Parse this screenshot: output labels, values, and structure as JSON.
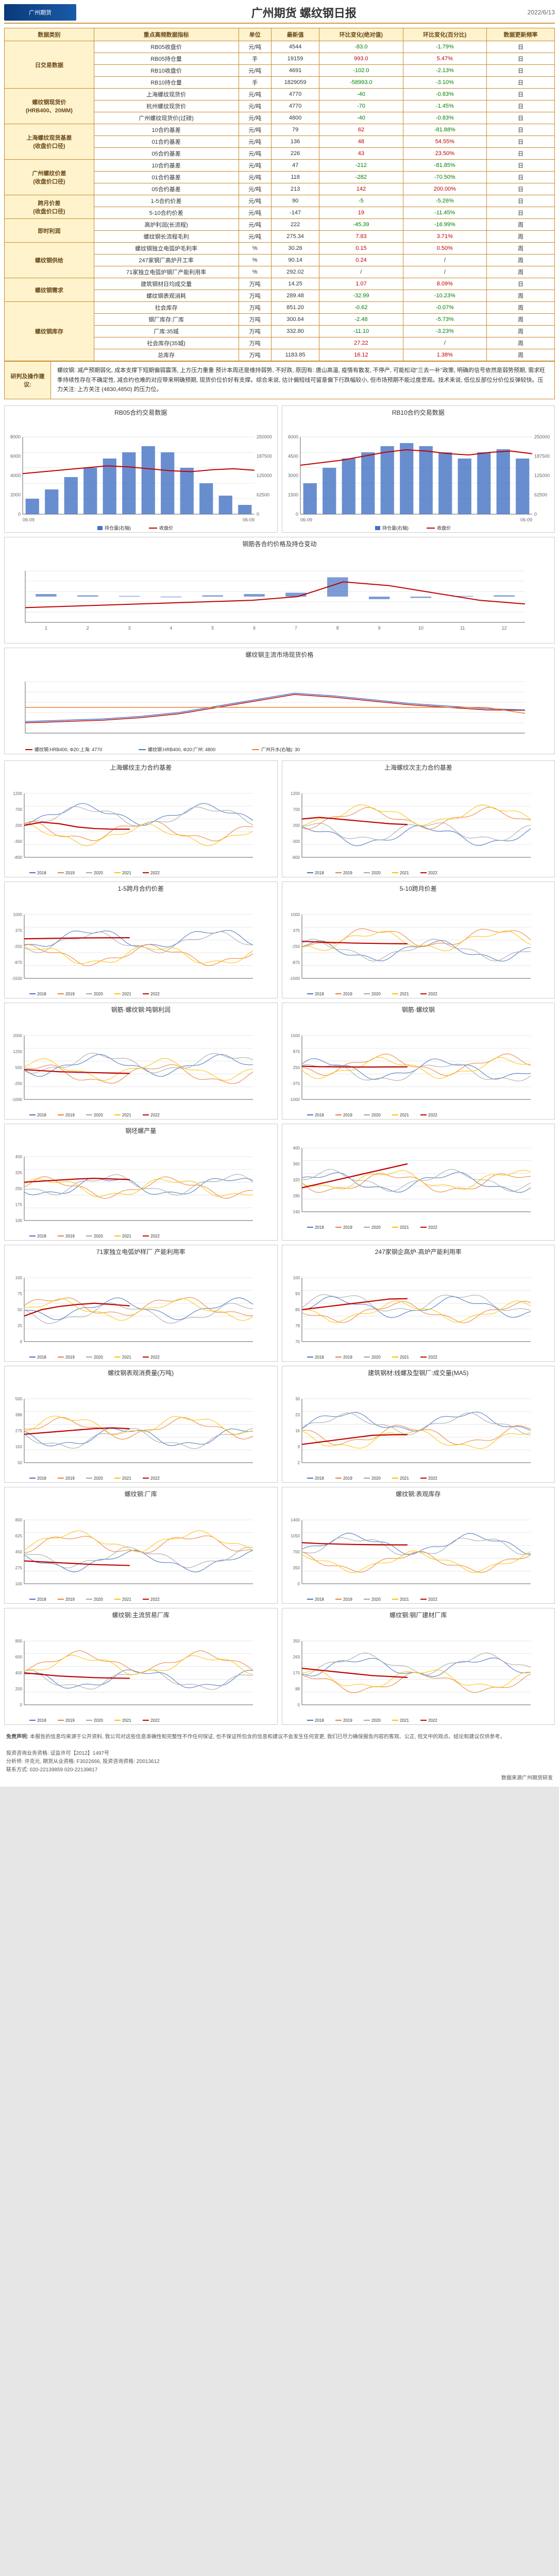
{
  "header": {
    "logo_text": "广州期货",
    "title": "广州期货 螺纹钢日报",
    "date": "2022/6/13"
  },
  "table": {
    "headers": [
      "数据类别",
      "重点高频数据指标",
      "单位",
      "最新值",
      "环比变化(绝对值)",
      "环比变化(百分比)",
      "数据更新频率"
    ],
    "sections": [
      {
        "cat": "日交易数据",
        "rows": [
          [
            "RB05收盘价",
            "元/吨",
            "4544",
            "-83.0",
            "-1.79%",
            "日"
          ],
          [
            "RB05持仓量",
            "手",
            "19159",
            "993.0",
            "5.47%",
            "日"
          ],
          [
            "RB10收盘价",
            "元/吨",
            "4691",
            "-102.0",
            "-2.13%",
            "日"
          ],
          [
            "RB10持仓量",
            "手",
            "1829059",
            "-58993.0",
            "-3.10%",
            "日"
          ]
        ]
      },
      {
        "cat": "螺纹钢现货价\n(HRB400、20MM)",
        "rows": [
          [
            "上海螺纹现货价",
            "元/吨",
            "4770",
            "-40",
            "-0.83%",
            "日"
          ],
          [
            "杭州螺纹现货价",
            "元/吨",
            "4770",
            "-70",
            "-1.45%",
            "日"
          ],
          [
            "广州螺纹现货价(过磅)",
            "元/吨",
            "4800",
            "-40",
            "-0.83%",
            "日"
          ]
        ]
      },
      {
        "cat": "上海螺纹现货基差\n(收盘价口径)",
        "rows": [
          [
            "10合约基差",
            "元/吨",
            "79",
            "62",
            "-81.88%",
            "日"
          ],
          [
            "01合约基差",
            "元/吨",
            "136",
            "48",
            "54.55%",
            "日"
          ],
          [
            "05合约基差",
            "元/吨",
            "226",
            "43",
            "23.50%",
            "日"
          ]
        ]
      },
      {
        "cat": "广州螺纹价差\n(收盘价口径)",
        "rows": [
          [
            "10合约基差",
            "元/吨",
            "47",
            "-212",
            "-81.85%",
            "日"
          ],
          [
            "01合约基差",
            "元/吨",
            "118",
            "-282",
            "-70.50%",
            "日"
          ],
          [
            "05合约基差",
            "元/吨",
            "213",
            "142",
            "200.00%",
            "日"
          ]
        ]
      },
      {
        "cat": "跨月价差\n(收盘价口径)",
        "rows": [
          [
            "1-5合约价差",
            "元/吨",
            "90",
            "-5",
            "-5.26%",
            "日"
          ],
          [
            "5-10合约价差",
            "元/吨",
            "-147",
            "19",
            "-11.45%",
            "日"
          ]
        ]
      },
      {
        "cat": "即时利润",
        "rows": [
          [
            "高炉利润(长流程)",
            "元/吨",
            "222",
            "-45.39",
            "-16.99%",
            "周"
          ],
          [
            "螺纹钢长流程毛利",
            "元/吨",
            "275.34",
            "7.83",
            "3.71%",
            "周"
          ]
        ]
      },
      {
        "cat": "螺纹钢供给",
        "rows": [
          [
            "螺纹钢独立电弧炉毛利率",
            "%",
            "30.26",
            "0.15",
            "0.50%",
            "周"
          ],
          [
            "247家钢厂高炉开工率",
            "%",
            "90.14",
            "0.24",
            "/",
            "周"
          ],
          [
            "71家独立电弧炉钢厂产能利用率",
            "%",
            "292.02",
            "/",
            "/",
            "周"
          ]
        ]
      },
      {
        "cat": "螺纹钢需求",
        "rows": [
          [
            "建筑钢材日均成交量",
            "万吨",
            "14.25",
            "1.07",
            "8.09%",
            "日"
          ],
          [
            "螺纹钢表观消耗",
            "万吨",
            "289.48",
            "-32.99",
            "-10.23%",
            "周"
          ]
        ]
      },
      {
        "cat": "螺纹钢库存",
        "rows": [
          [
            "社会库存",
            "万吨",
            "851.20",
            "-0.62",
            "-0.07%",
            "周"
          ],
          [
            "钢厂库存:厂库",
            "万吨",
            "300.64",
            "-2.48",
            "-5.73%",
            "周"
          ],
          [
            "厂库:35城",
            "万吨",
            "332.80",
            "-11.10",
            "-3.23%",
            "周"
          ],
          [
            "社会库存(35城)",
            "万吨",
            "",
            "27.22",
            "/",
            "周"
          ],
          [
            "总库存",
            "万吨",
            "1183.85",
            "16.12",
            "1.38%",
            "周"
          ]
        ]
      }
    ]
  },
  "analysis": {
    "label": "研判及操作建议:",
    "text": "螺纹钢: 减产预期弱化, 成本支撑下短期偏弱震荡, 上方压力重重 预计本周还是维持弱势, 不好跌, 原因有: 唐山高温, 疫情有散发, 不停产, 可能松动\"三去一补\"政策, 明确的信号依然是弱势预期, 需求旺季持续性存在不确定性, 减合约也难的对应带来明确预期, 现货价位价好有支撑。综合来说, 估计偏短线可留意偏下行跌幅较小, 但市场预期不能过度悲观。技术来说, 低位反部位分价位反弹较快。压力关注: 上方关注 (4830,4850) 的压力位。"
  },
  "chart_defaults": {
    "grid_color": "#d0d0d0",
    "bg": "#ffffff",
    "font_size": 10,
    "line_width": 1.5,
    "series_colors": {
      "2018": "#4472c4",
      "2019": "#ed7d31",
      "2020": "#a5a5a5",
      "2021": "#ffc000",
      "2022": "#c00000"
    }
  },
  "top_charts": [
    {
      "title": "RB05合约交易数据",
      "type": "bar+line",
      "x_start": "06-09",
      "x_end": "06-09",
      "bar_color": "#4472c4",
      "line_color": "#c00000",
      "y1_range": [
        0,
        8000
      ],
      "y2_range": [
        0,
        250000
      ],
      "legend": [
        "持仓量(右轴)",
        "收盘价"
      ],
      "bars": [
        50000,
        80000,
        120000,
        150000,
        180000,
        200000,
        220000,
        200000,
        150000,
        100000,
        60000,
        30000
      ],
      "line": [
        4200,
        4400,
        4600,
        4800,
        5000,
        4900,
        4700,
        4500,
        4400,
        4600,
        4700,
        4544
      ]
    },
    {
      "title": "RB10合约交易数据",
      "type": "bar+line",
      "x_start": "06-09",
      "x_end": "06-09",
      "bar_color": "#4472c4",
      "line_color": "#c00000",
      "y1_range": [
        0,
        6000
      ],
      "y2_range": [
        0,
        250000
      ],
      "legend": [
        "持仓量(右轴)",
        "收盘价"
      ],
      "bars": [
        100000,
        150000,
        180000,
        200000,
        220000,
        230000,
        220000,
        200000,
        180000,
        200000,
        210000,
        180000
      ],
      "line": [
        3800,
        4000,
        4200,
        4500,
        4800,
        5000,
        4900,
        4700,
        4600,
        4800,
        4900,
        4691
      ]
    }
  ],
  "wide_charts": [
    {
      "title": "钢筋各合约价格及持仓变动",
      "type": "line+bar",
      "x_labels": [
        "1",
        "2",
        "3",
        "4",
        "5",
        "6",
        "7",
        "8",
        "9",
        "10",
        "11",
        "12"
      ],
      "line_color": "#c00000",
      "bar_color": "#4472c4",
      "y1_range": [
        4500,
        5200
      ],
      "y2_range": [
        -20000,
        20000
      ],
      "line": [
        4700,
        4720,
        4740,
        4760,
        4780,
        4800,
        4850,
        5050,
        5000,
        4900,
        4800,
        4750
      ],
      "bars": [
        2000,
        1000,
        500,
        -500,
        1000,
        2000,
        3000,
        15000,
        -2000,
        -1000,
        500,
        1000
      ]
    },
    {
      "title": "螺纹钢主流市场现货价格",
      "type": "multi-line",
      "legend": [
        "螺纹钢:HRB400, Φ20:上海",
        "螺纹钢:HRB400, Φ20:广州",
        "广州升水(右轴)"
      ],
      "colors": [
        "#c00000",
        "#4472c4",
        "#ed7d31"
      ],
      "y1_range": [
        3000,
        7000
      ],
      "y2_range": [
        -200,
        400
      ],
      "values": [
        4770,
        4800,
        30
      ],
      "lines": [
        [
          3800,
          3900,
          4000,
          4200,
          4500,
          5000,
          5500,
          6000,
          5800,
          5500,
          5200,
          5000,
          4800,
          4770
        ],
        [
          3900,
          4000,
          4100,
          4300,
          4600,
          5100,
          5600,
          6100,
          5900,
          5600,
          5300,
          5100,
          4900,
          4800
        ],
        [
          100,
          100,
          100,
          100,
          100,
          100,
          100,
          100,
          100,
          100,
          100,
          100,
          100,
          30
        ]
      ]
    }
  ],
  "year_compare_charts": [
    {
      "title": "上海螺纹主力合约基差",
      "ylim": [
        -800,
        1200
      ],
      "highlight_2022": [
        200,
        300,
        250,
        150,
        100,
        80,
        79
      ]
    },
    {
      "title": "上海螺纹次主力合约基差",
      "ylim": [
        -800,
        1200
      ],
      "highlight_2022": [
        400,
        450,
        400,
        350,
        300,
        250,
        226
      ]
    },
    {
      "title": "1-5跨月合约价差",
      "ylim": [
        -1500,
        1000
      ],
      "highlight_2022": [
        50,
        60,
        70,
        80,
        85,
        88,
        90
      ]
    },
    {
      "title": "5-10跨月价差",
      "ylim": [
        -1500,
        1000
      ],
      "highlight_2022": [
        -50,
        -80,
        -100,
        -120,
        -130,
        -140,
        -147
      ]
    },
    {
      "title": "钢筋·螺纹钢:吨钢利润",
      "ylim": [
        -1000,
        2000
      ],
      "highlight_2022": [
        400,
        350,
        300,
        280,
        260,
        240,
        222
      ]
    },
    {
      "title": "钢筋·螺纹钢",
      "ylim": [
        -1000,
        1500
      ],
      "highlight_2022": [
        300,
        280,
        275,
        270,
        268,
        272,
        275
      ]
    },
    {
      "title": "钢坯螺产量",
      "ylim": [
        100,
        400
      ],
      "highlight_2022": [
        280,
        285,
        290,
        295,
        298,
        295,
        292
      ]
    },
    {
      "title": "",
      "ylim": [
        240,
        400
      ],
      "highlight_2022": [
        300,
        310,
        320,
        330,
        340,
        350,
        360
      ]
    },
    {
      "title": "71家独立电弧炉样厂 产能利用率",
      "ylim": [
        0,
        100
      ],
      "highlight_2022": [
        40,
        50,
        55,
        58,
        60,
        58,
        56
      ]
    },
    {
      "title": "247家钢企高炉·高炉产能利用率",
      "ylim": [
        70,
        100
      ],
      "highlight_2022": [
        85,
        86,
        87,
        88,
        89,
        90,
        90.14
      ]
    },
    {
      "title": "螺纹钢表观消费量(万吨)",
      "ylim": [
        50,
        500
      ],
      "highlight_2022": [
        250,
        260,
        270,
        280,
        290,
        295,
        289
      ]
    },
    {
      "title": "建筑钢材:线螺及型钢厂:成交量(MA5)",
      "ylim": [
        2,
        30
      ],
      "highlight_2022": [
        10,
        11,
        12,
        13,
        14,
        14.2,
        14.25
      ]
    },
    {
      "title": "螺纹钢:厂库",
      "ylim": [
        100,
        800
      ],
      "highlight_2022": [
        350,
        340,
        330,
        320,
        310,
        305,
        300
      ]
    },
    {
      "title": "螺纹钢:表观库存",
      "ylim": [
        0,
        1400
      ],
      "highlight_2022": [
        900,
        880,
        870,
        860,
        855,
        852,
        851
      ]
    },
    {
      "title": "螺纹钢:主流贸易厂库",
      "ylim": [
        0,
        800
      ],
      "highlight_2022": [
        400,
        380,
        360,
        350,
        340,
        335,
        332
      ]
    },
    {
      "title": "螺纹钢:钢厂建材厂库",
      "ylim": [
        0,
        350
      ],
      "highlight_2022": [
        200,
        190,
        180,
        170,
        160,
        155,
        150
      ]
    }
  ],
  "footer": {
    "disclaimer_label": "免责声明:",
    "disclaimer": "本报告的信息均来源于公开资料, 我公司对这些信息准确性和完整性不作任何保证, 也不保证所包含的信息和建议不会发生任何变更, 我们已尽力确保报告内容的客观、公正, 但文中的观点、结论和建议仅供参考。",
    "license": "投资咨询业务资格: 证监许可【2012】1497号",
    "analysts": "分析师: 许克元, 期货从业资格: F3022666, 投资咨询资格: Z0013612",
    "contact": "联系方式: 020-22139859 020-22139817",
    "source_label": "数据来源广州期货研发"
  }
}
